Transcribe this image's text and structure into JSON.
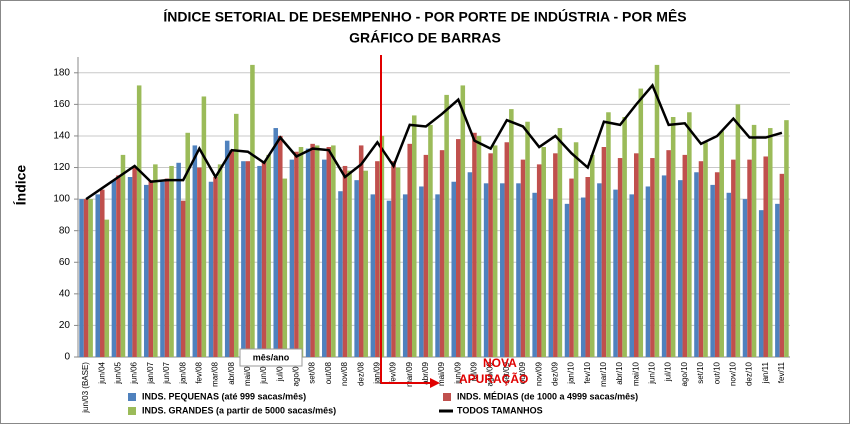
{
  "chart_data": {
    "type": "bar",
    "title": "ÍNDICE SETORIAL DE DESEMPENHO - POR PORTE DE INDÚSTRIA - POR MÊS",
    "subtitle": "GRÁFICO DE BARRAS",
    "x_label": "mês/ano",
    "y_label": "Índice",
    "annotations": [
      "NOVA",
      "APURAÇÃO"
    ],
    "categories": [
      "jun/03 (BASE)",
      "jun/04",
      "jun/05",
      "jun/06",
      "jan/07",
      "jun/07",
      "jan/08",
      "fev/08",
      "mar/08",
      "abr/08",
      "mai/08",
      "jun/08",
      "jul/08",
      "ago/08",
      "set/08",
      "out/08",
      "nov/08",
      "dez/08",
      "jan/09",
      "fev/09",
      "mar/09",
      "abr/09",
      "mai/09",
      "jun/09",
      "jul/09",
      "ago/09",
      "set/09",
      "out/09",
      "nov/09",
      "dez/09",
      "jan/10",
      "fev/10",
      "mar/10",
      "abr/10",
      "mai/10",
      "jun/10",
      "jul/10",
      "ago/10",
      "set/10",
      "out/10",
      "nov/10",
      "dez/10",
      "jan/11",
      "fev/11"
    ],
    "series": [
      {
        "name": "INDS. PEQUENAS (até 999 sacas/mês)",
        "color": "#4f81bd",
        "type": "bar",
        "values": [
          100,
          103,
          112,
          114,
          109,
          111,
          123,
          134,
          111,
          137,
          124,
          121,
          145,
          125,
          132,
          125,
          105,
          112,
          103,
          99,
          103,
          108,
          103,
          111,
          117,
          110,
          110,
          110,
          104,
          100,
          97,
          101,
          110,
          106,
          103,
          108,
          115,
          112,
          117,
          109,
          104,
          100,
          93,
          97
        ]
      },
      {
        "name": "INDS. MÉDIAS (de 1000 a 4999 sacas/mês)",
        "color": "#c0504d",
        "type": "bar",
        "values": [
          100,
          106,
          115,
          120,
          112,
          113,
          99,
          120,
          114,
          131,
          124,
          124,
          140,
          130,
          135,
          133,
          121,
          134,
          124,
          124,
          135,
          128,
          131,
          138,
          142,
          129,
          136,
          125,
          122,
          129,
          113,
          114,
          133,
          126,
          129,
          126,
          131,
          128,
          124,
          117,
          125,
          125,
          127,
          116
        ]
      },
      {
        "name": "INDS. GRANDES (a partir de 5000 sacas/mês)",
        "color": "#9bbb59",
        "type": "bar",
        "values": [
          100,
          87,
          128,
          172,
          122,
          121,
          142,
          165,
          122,
          154,
          185,
          128,
          113,
          133,
          134,
          134,
          118,
          118,
          140,
          120,
          153,
          147,
          166,
          172,
          140,
          134,
          157,
          149,
          133,
          145,
          136,
          128,
          155,
          152,
          170,
          185,
          152,
          155,
          136,
          143,
          160,
          147,
          145,
          150
        ]
      },
      {
        "name": "TODOS TAMANHOS",
        "color": "#000000",
        "type": "line",
        "values": [
          100,
          107,
          114,
          121,
          111,
          112,
          112,
          132,
          114,
          131,
          130,
          123,
          139,
          127,
          132,
          131,
          114,
          122,
          136,
          121,
          147,
          146,
          154,
          163,
          137,
          132,
          150,
          146,
          133,
          140,
          129,
          120,
          149,
          147,
          160,
          172,
          147,
          148,
          135,
          140,
          151,
          139,
          139,
          142
        ]
      }
    ],
    "ylim": [
      0,
      190
    ],
    "yticks": [
      0,
      20,
      40,
      60,
      80,
      100,
      120,
      140,
      160,
      180
    ],
    "grid": true
  }
}
